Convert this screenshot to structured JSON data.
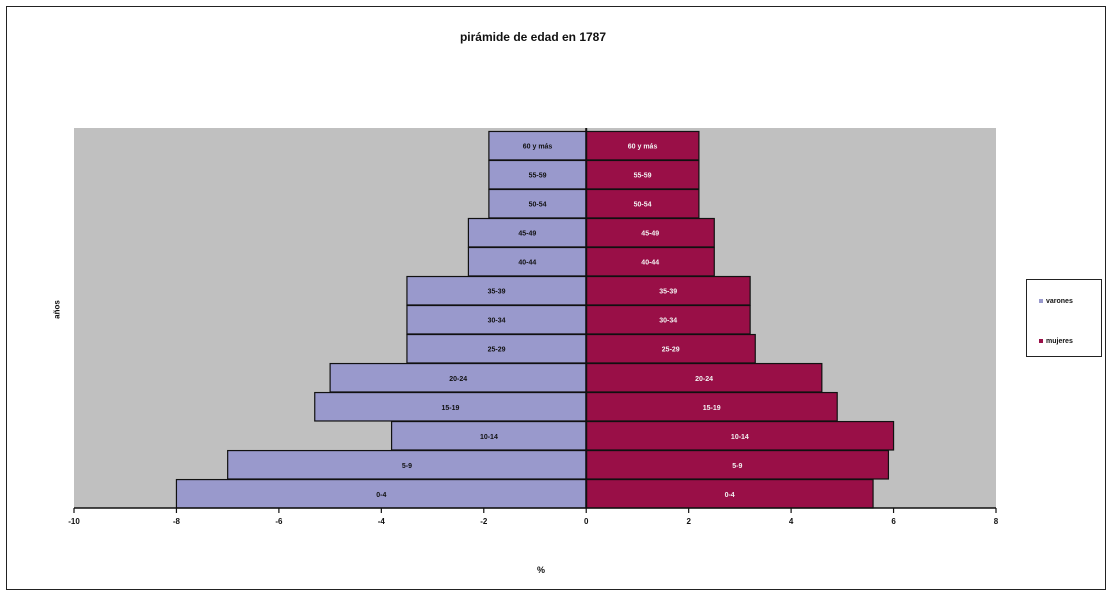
{
  "chart_data": {
    "type": "bar",
    "orientation": "horizontal",
    "title": "pirámide de edad en 1787",
    "xlabel": "%",
    "ylabel": "años",
    "xlim": [
      -10,
      8
    ],
    "x_ticks": [
      -10,
      -8,
      -6,
      -4,
      -2,
      0,
      2,
      4,
      6,
      8
    ],
    "categories": [
      "0-4",
      "5-9",
      "10-14",
      "15-19",
      "20-24",
      "25-29",
      "30-34",
      "35-39",
      "40-44",
      "45-49",
      "50-54",
      "55-59",
      "60 y más"
    ],
    "series": [
      {
        "name": "varones",
        "color": "#9999cc",
        "values": [
          -8.0,
          -7.0,
          -3.8,
          -5.3,
          -5.0,
          -3.5,
          -3.5,
          -3.5,
          -2.3,
          -2.3,
          -1.9,
          -1.9,
          -1.9
        ]
      },
      {
        "name": "mujeres",
        "color": "#990f47",
        "values": [
          5.6,
          5.9,
          6.0,
          4.9,
          4.6,
          3.3,
          3.2,
          3.2,
          2.5,
          2.5,
          2.2,
          2.2,
          2.2
        ]
      }
    ],
    "plot_background": "#c0c0c0",
    "grid": false,
    "legend_position": "right"
  }
}
